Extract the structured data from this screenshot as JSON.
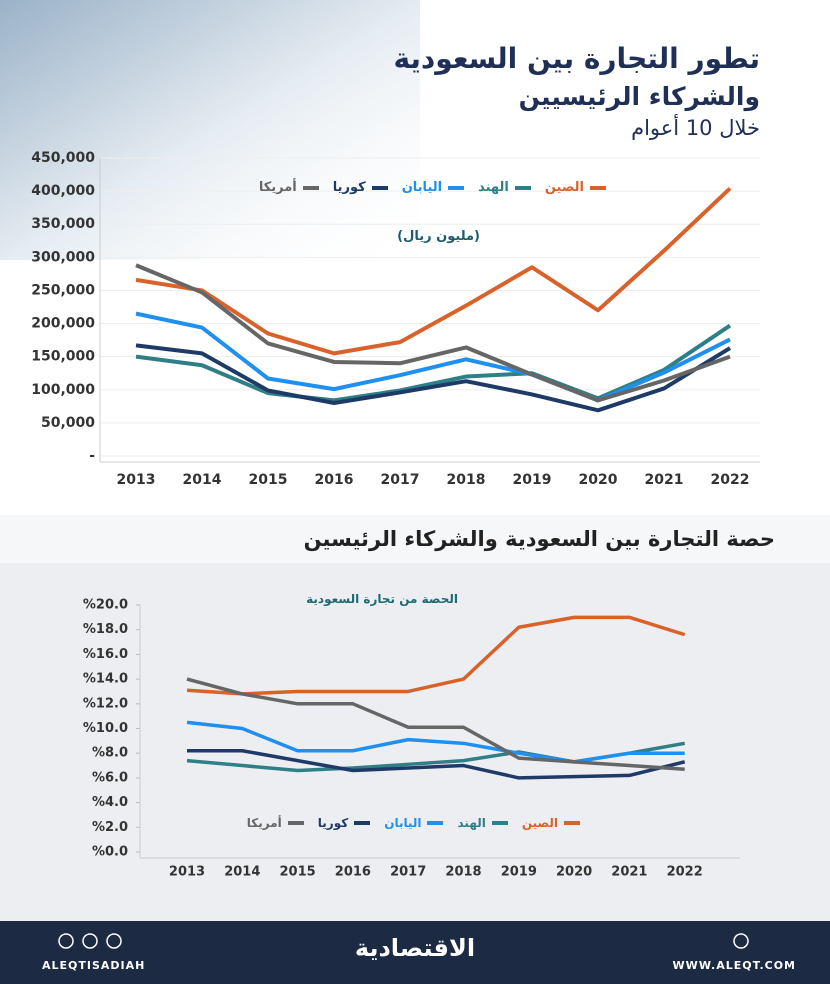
{
  "chart_data": [
    {
      "type": "line",
      "title": [
        "تطور التجارة بين السعودية",
        "والشركاء الرئيسيين"
      ],
      "subtitle": "خلال 10 أعوام",
      "unit": "(مليون ريال)",
      "categories": [
        "2013",
        "2014",
        "2015",
        "2016",
        "2017",
        "2018",
        "2019",
        "2020",
        "2021",
        "2022"
      ],
      "series": [
        {
          "name": "الصين",
          "color": "#d9622b",
          "values": [
            266000,
            250000,
            185000,
            155000,
            172000,
            227000,
            285000,
            220000,
            310000,
            404000
          ]
        },
        {
          "name": "الهند",
          "color": "#2e7f86",
          "values": [
            150000,
            137000,
            95000,
            84000,
            99000,
            120000,
            125000,
            87000,
            130000,
            197000
          ]
        },
        {
          "name": "اليابان",
          "color": "#1f8ff0",
          "values": [
            215000,
            194000,
            117000,
            101000,
            122000,
            146000,
            123000,
            84000,
            126000,
            176000
          ]
        },
        {
          "name": "كوريا",
          "color": "#1e3a66",
          "values": [
            167000,
            155000,
            99000,
            80000,
            96000,
            113000,
            93000,
            69000,
            102000,
            163000
          ]
        },
        {
          "name": "أمريكا",
          "color": "#666666",
          "values": [
            288000,
            247000,
            170000,
            142000,
            140000,
            164000,
            123000,
            84000,
            114000,
            150000
          ]
        }
      ],
      "ylim": [
        0,
        450000
      ],
      "yticks": [
        {
          "value": 0,
          "label": "-"
        },
        {
          "value": 50000,
          "label": "50,000"
        },
        {
          "value": 100000,
          "label": "100,000"
        },
        {
          "value": 150000,
          "label": "150,000"
        },
        {
          "value": 200000,
          "label": "200,000"
        },
        {
          "value": 250000,
          "label": "250,000"
        },
        {
          "value": 300000,
          "label": "300,000"
        },
        {
          "value": 350000,
          "label": "350,000"
        },
        {
          "value": 400000,
          "label": "400,000"
        },
        {
          "value": 450000,
          "label": "450,000"
        }
      ],
      "grid": true
    },
    {
      "type": "line",
      "title": "حصة  التجارة بين السعودية والشركاء الرئيسين",
      "subtitle": "الحصة من  تجارة السعودية",
      "categories": [
        "2013",
        "2014",
        "2015",
        "2016",
        "2017",
        "2018",
        "2019",
        "2020",
        "2021",
        "2022"
      ],
      "series": [
        {
          "name": "الصين",
          "color": "#d9622b",
          "values": [
            13.1,
            12.8,
            13,
            13,
            13,
            14,
            18.2,
            19,
            19,
            17.6
          ]
        },
        {
          "name": "الهند",
          "color": "#2e7f86",
          "values": [
            7.4,
            7,
            6.6,
            6.8,
            7.1,
            7.4,
            8.1,
            7.3,
            8,
            8.8
          ]
        },
        {
          "name": "اليابان",
          "color": "#1f8ff0",
          "values": [
            10.5,
            10,
            8.2,
            8.2,
            9.1,
            8.8,
            8,
            7.3,
            8,
            8
          ]
        },
        {
          "name": "كوريا",
          "color": "#1e3a66",
          "values": [
            8.2,
            8.2,
            7.4,
            6.6,
            6.8,
            7,
            6,
            6.1,
            6.2,
            7.3
          ]
        },
        {
          "name": "أمريكا",
          "color": "#666666",
          "values": [
            14,
            12.8,
            12,
            12,
            10.1,
            10.1,
            7.6,
            7.3,
            7,
            6.7
          ]
        }
      ],
      "ylim": [
        0,
        20
      ],
      "yticks": [
        {
          "value": 0,
          "label": "%0.0"
        },
        {
          "value": 2,
          "label": "%2.0"
        },
        {
          "value": 4,
          "label": "%4.0"
        },
        {
          "value": 6,
          "label": "%6.0"
        },
        {
          "value": 8,
          "label": "%8.0"
        },
        {
          "value": 10,
          "label": "%10.0"
        },
        {
          "value": 12,
          "label": "%12.0"
        },
        {
          "value": 14,
          "label": "%14.0"
        },
        {
          "value": 16,
          "label": "%16.0"
        },
        {
          "value": 18,
          "label": "%18.0"
        },
        {
          "value": 20,
          "label": "%20.0"
        }
      ],
      "grid": false
    }
  ],
  "footer": {
    "handle": "ALEQTISADIAH",
    "brand": "الاقتصادية",
    "site": "WWW.ALEQT.COM"
  }
}
